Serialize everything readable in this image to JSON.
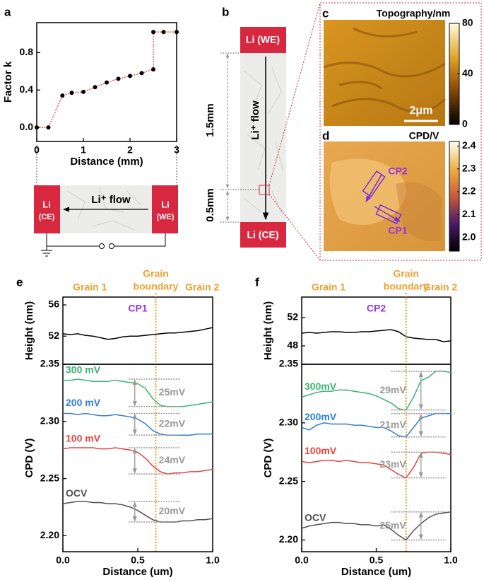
{
  "chart_data": [
    {
      "type": "errorbar",
      "panel_label": "a",
      "xlabel": "Distance (mm)",
      "ylabel": "Factor k",
      "x": [
        0,
        0.25,
        0.55,
        0.75,
        1.0,
        1.25,
        1.5,
        1.75,
        2.0,
        2.25,
        2.5,
        2.5,
        2.72,
        3.0
      ],
      "values": [
        0,
        0,
        0.34,
        0.37,
        0.38,
        0.43,
        0.48,
        0.52,
        0.55,
        0.58,
        0.62,
        1.02,
        1.02,
        1.02
      ],
      "errors": [
        0.01,
        0.01,
        0.02,
        0.02,
        0.02,
        0.01,
        0.02,
        0.01,
        0.01,
        0.01,
        0.02,
        0.02,
        0.01,
        0.01
      ],
      "color": "#e8423f",
      "xlim": [
        0,
        3
      ],
      "xticks": [
        0,
        1,
        2,
        3
      ],
      "ylim": [
        -0.15,
        1.12
      ],
      "yticks": [
        {
          "value": 0,
          "label": "0.0"
        },
        {
          "value": 0.4,
          "label": "0.4"
        },
        {
          "value": 0.8,
          "label": "0.8"
        }
      ]
    },
    {
      "type": "line",
      "panel_label": "e",
      "ylabel": "Height (nm)",
      "header": {
        "grain_left": "Grain 1",
        "boundary": [
          "Grain",
          "boundary"
        ],
        "grain_right": "Grain 2"
      },
      "profile": "CP1",
      "boundary_x": 0.62,
      "color": "#000000",
      "x": [
        0,
        0.05,
        0.1,
        0.15,
        0.2,
        0.25,
        0.3,
        0.35,
        0.4,
        0.45,
        0.5,
        0.55,
        0.6,
        0.65,
        0.7,
        0.75,
        0.8,
        0.85,
        0.9,
        0.95,
        1.0
      ],
      "values": [
        52.3,
        52.2,
        52.3,
        52.1,
        52.0,
        51.8,
        51.6,
        51.7,
        51.9,
        52.0,
        52.0,
        52.1,
        52.2,
        52.3,
        52.4,
        52.4,
        52.5,
        52.6,
        52.7,
        52.9,
        53.1
      ],
      "xlim": [
        0,
        1
      ],
      "ylim": [
        48.4,
        57
      ],
      "yticks": [
        52,
        56
      ]
    },
    {
      "type": "line",
      "ylabel": "CPD (V)",
      "xlabel": "Distance (um)",
      "x": [
        0,
        0.05,
        0.1,
        0.15,
        0.2,
        0.25,
        0.3,
        0.35,
        0.4,
        0.45,
        0.5,
        0.55,
        0.6,
        0.65,
        0.7,
        0.75,
        0.8,
        0.85,
        0.9,
        0.95,
        1.0
      ],
      "xlim": [
        0,
        1
      ],
      "xticks": [
        {
          "value": 0,
          "label": "0.0"
        },
        0.5,
        {
          "value": 1,
          "label": "1.0"
        }
      ],
      "ylim": [
        2.186,
        2.35
      ],
      "yticks": [
        {
          "value": 2.2,
          "label": "2.20"
        },
        2.25,
        {
          "value": 2.3,
          "label": "2.30"
        },
        2.35
      ],
      "series": [
        {
          "name": "300 mV",
          "color": "#3cb371",
          "delta_label": "25mV",
          "values": [
            2.336,
            2.336,
            2.337,
            2.336,
            2.335,
            2.335,
            2.335,
            2.336,
            2.335,
            2.334,
            2.333,
            2.329,
            2.32,
            2.314,
            2.313,
            2.313,
            2.313,
            2.314,
            2.315,
            2.316,
            2.317
          ]
        },
        {
          "name": "200 mV",
          "color": "#2f7fd8",
          "delta_label": "22mV",
          "values": [
            2.307,
            2.307,
            2.306,
            2.307,
            2.306,
            2.305,
            2.305,
            2.306,
            2.305,
            2.304,
            2.302,
            2.298,
            2.292,
            2.289,
            2.288,
            2.288,
            2.288,
            2.288,
            2.289,
            2.289,
            2.289
          ]
        },
        {
          "name": "100 mV",
          "color": "#e8423f",
          "delta_label": "24mV",
          "values": [
            2.276,
            2.277,
            2.277,
            2.277,
            2.277,
            2.276,
            2.276,
            2.277,
            2.276,
            2.275,
            2.273,
            2.268,
            2.261,
            2.256,
            2.254,
            2.255,
            2.255,
            2.256,
            2.256,
            2.257,
            2.258
          ]
        },
        {
          "name": "OCV",
          "color": "#505050",
          "delta_label": "20mV",
          "values": [
            2.228,
            2.229,
            2.23,
            2.23,
            2.229,
            2.229,
            2.228,
            2.228,
            2.227,
            2.225,
            2.222,
            2.218,
            2.214,
            2.212,
            2.212,
            2.212,
            2.213,
            2.213,
            2.214,
            2.214,
            2.215
          ]
        }
      ]
    },
    {
      "type": "line",
      "panel_label": "f",
      "ylabel": "Height (nm)",
      "header": {
        "grain_left": "Grain 1",
        "boundary": [
          "Grain",
          "boundary"
        ],
        "grain_right": "Grain 2"
      },
      "profile": "CP2",
      "boundary_x": 0.7,
      "color": "#000000",
      "x": [
        0,
        0.05,
        0.1,
        0.15,
        0.2,
        0.25,
        0.3,
        0.35,
        0.4,
        0.45,
        0.5,
        0.55,
        0.6,
        0.65,
        0.7,
        0.75,
        0.8,
        0.85,
        0.9,
        0.95,
        1.0
      ],
      "values": [
        49.8,
        49.9,
        49.8,
        49.9,
        50.0,
        50.0,
        49.9,
        49.9,
        50.0,
        50.0,
        50.1,
        50.2,
        50.3,
        50.0,
        49.3,
        49.1,
        49.0,
        48.9,
        48.9,
        48.6,
        48.7
      ],
      "xlim": [
        0,
        1
      ],
      "ylim": [
        45.4,
        54.9
      ],
      "yticks": [
        48,
        52
      ]
    },
    {
      "type": "line",
      "ylabel": "CPD (V)",
      "xlabel": "Distance (um)",
      "x": [
        0,
        0.05,
        0.1,
        0.15,
        0.2,
        0.25,
        0.3,
        0.35,
        0.4,
        0.45,
        0.5,
        0.55,
        0.6,
        0.65,
        0.7,
        0.75,
        0.8,
        0.85,
        0.9,
        0.95,
        1.0
      ],
      "xlim": [
        0,
        1
      ],
      "xticks": [
        {
          "value": 0,
          "label": "0.0"
        },
        0.5,
        {
          "value": 1,
          "label": "1.0"
        }
      ],
      "ylim": [
        2.19,
        2.35
      ],
      "yticks": [
        {
          "value": 2.2,
          "label": "2.20"
        },
        2.25,
        {
          "value": 2.3,
          "label": "2.30"
        },
        2.35
      ],
      "series": [
        {
          "name": "300mV",
          "color": "#3cb371",
          "delta_label": "29mV",
          "values": [
            2.322,
            2.324,
            2.326,
            2.327,
            2.327,
            2.328,
            2.328,
            2.327,
            2.326,
            2.325,
            2.323,
            2.32,
            2.317,
            2.312,
            2.311,
            2.322,
            2.336,
            2.339,
            2.344,
            2.344,
            2.343
          ]
        },
        {
          "name": "200mV",
          "color": "#2f7fd8",
          "delta_label": "21mV",
          "values": [
            2.296,
            2.294,
            2.298,
            2.3,
            2.299,
            2.299,
            2.299,
            2.298,
            2.298,
            2.297,
            2.296,
            2.296,
            2.293,
            2.289,
            2.288,
            2.296,
            2.304,
            2.306,
            2.308,
            2.308,
            2.308
          ]
        },
        {
          "name": "100mV",
          "color": "#e8423f",
          "delta_label": "23mV",
          "values": [
            2.267,
            2.266,
            2.267,
            2.268,
            2.268,
            2.267,
            2.268,
            2.267,
            2.266,
            2.266,
            2.265,
            2.264,
            2.26,
            2.256,
            2.253,
            2.262,
            2.274,
            2.275,
            2.275,
            2.274,
            2.273
          ]
        },
        {
          "name": "OCV",
          "color": "#505050",
          "delta_label": "25mV",
          "values": [
            2.21,
            2.212,
            2.213,
            2.214,
            2.215,
            2.215,
            2.214,
            2.214,
            2.213,
            2.213,
            2.212,
            2.213,
            2.209,
            2.204,
            2.2,
            2.208,
            2.214,
            2.219,
            2.222,
            2.223,
            2.224
          ]
        }
      ]
    }
  ],
  "schematic_a": {
    "left_electrode": [
      "Li",
      "(CE)"
    ],
    "right_electrode": [
      "Li",
      "(WE)"
    ],
    "flow": "Li⁺ flow"
  },
  "panel_b": {
    "label": "b",
    "top_electrode": "Li (WE)",
    "bottom_electrode": "Li (CE)",
    "flow": "Li⁺ flow",
    "upper_distance": "1.5mm",
    "lower_distance": "0.5mm"
  },
  "panel_c": {
    "label": "c",
    "title": "Topography/nm",
    "colorbar_lim": [
      0,
      80
    ],
    "colorbar_ticks": [
      0,
      40,
      80
    ],
    "scale_bar": "2μm"
  },
  "panel_d": {
    "label": "d",
    "title": "CPD/V",
    "colorbar_lim": [
      1.94,
      2.42
    ],
    "colorbar_ticks": [
      {
        "value": 2.0,
        "label": "2.0"
      },
      2.1,
      2.2,
      2.3,
      2.4
    ],
    "profiles": [
      "CP2",
      "CP1"
    ]
  }
}
